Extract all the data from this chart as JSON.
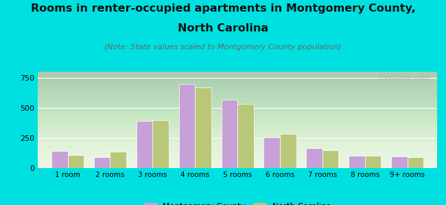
{
  "categories": [
    "1 room",
    "2 rooms",
    "3 rooms",
    "4 rooms",
    "5 rooms",
    "6 rooms",
    "7 rooms",
    "8 rooms",
    "9+ rooms"
  ],
  "montgomery_values": [
    140,
    90,
    390,
    700,
    565,
    255,
    165,
    100,
    95
  ],
  "nc_values": [
    110,
    135,
    400,
    670,
    535,
    285,
    145,
    100,
    90
  ],
  "montgomery_color": "#c8a0d8",
  "nc_color": "#b8c878",
  "title_line1": "Rooms in renter-occupied apartments in Montgomery County,",
  "title_line2": "North Carolina",
  "subtitle": "(Note: State values scaled to Montgomery County population)",
  "legend_montgomery": "Montgomery County",
  "legend_nc": "North Carolina",
  "background_outer": "#00e0e0",
  "background_chart_top": "#d8f0d0",
  "background_chart_bottom": "#f0faf0",
  "ylim": [
    0,
    800
  ],
  "yticks": [
    0,
    250,
    500,
    750
  ],
  "bar_width": 0.38,
  "title_fontsize": 11.5,
  "subtitle_fontsize": 8,
  "watermark": "City-Data.com"
}
